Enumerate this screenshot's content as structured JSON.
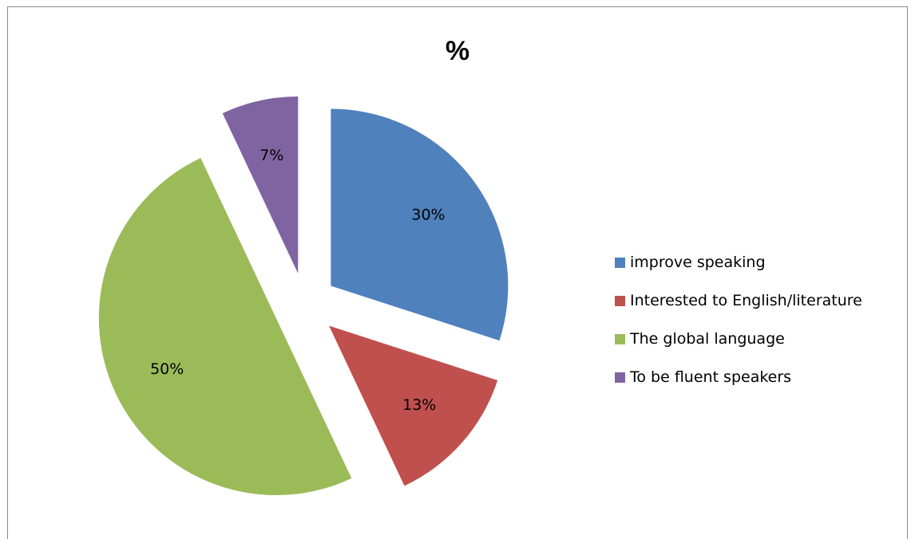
{
  "chart_data": {
    "type": "pie",
    "title": "%",
    "exploded": true,
    "legend_position": "right",
    "categories": [
      "improve speaking",
      "Interested to English/literature",
      "The global language",
      "To be fluent speakers"
    ],
    "values": [
      30,
      13,
      50,
      7
    ],
    "labels": [
      "30%",
      "13%",
      "50%",
      "7%"
    ],
    "colors": [
      "#4F81BD",
      "#C0504D",
      "#9BBB59",
      "#8064A2"
    ]
  }
}
